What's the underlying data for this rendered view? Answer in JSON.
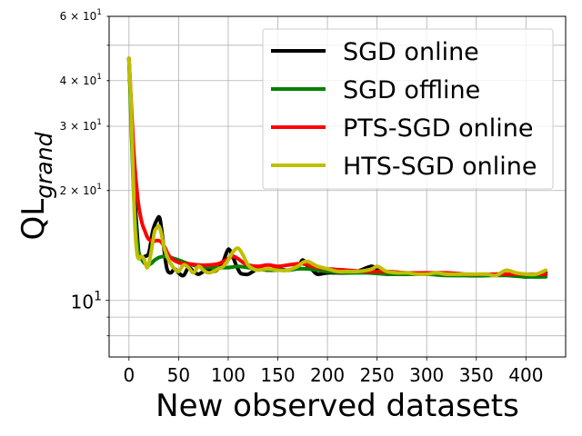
{
  "chart_data": {
    "type": "line",
    "xlabel": "New observed datasets",
    "ylabel_base": "QL",
    "ylabel_sub": "grand",
    "yscale": "log",
    "xlim": [
      -20,
      440
    ],
    "ylim": [
      7,
      60
    ],
    "grid": true,
    "legend_position": "top-right",
    "x_ticks": [
      0,
      50,
      100,
      150,
      200,
      250,
      300,
      350,
      400
    ],
    "x_tick_labels": [
      "0",
      "50",
      "100",
      "150",
      "200",
      "250",
      "300",
      "350",
      "400"
    ],
    "y_major_ticks": [
      {
        "value": 10,
        "base": "10",
        "exp": "1",
        "mult": ""
      },
      {
        "value": 20,
        "base": "10",
        "exp": "1",
        "mult": "2"
      },
      {
        "value": 30,
        "base": "10",
        "exp": "1",
        "mult": "3"
      },
      {
        "value": 40,
        "base": "10",
        "exp": "1",
        "mult": "4"
      },
      {
        "value": 60,
        "base": "10",
        "exp": "1",
        "mult": "6"
      }
    ],
    "y_grid_lines": [
      8,
      9,
      10,
      20,
      30,
      40,
      50,
      60
    ],
    "series": [
      {
        "name": "SGD online",
        "color": "#000000",
        "x": [
          0,
          2,
          4,
          6,
          8,
          10,
          13,
          16,
          20,
          24,
          28,
          31,
          34,
          38,
          42,
          46,
          50,
          55,
          60,
          65,
          70,
          75,
          80,
          85,
          90,
          95,
          100,
          104,
          108,
          112,
          116,
          120,
          125,
          130,
          140,
          150,
          160,
          170,
          175,
          180,
          185,
          190,
          200,
          210,
          220,
          230,
          240,
          245,
          250,
          255,
          260,
          270,
          280,
          290,
          300,
          320,
          340,
          360,
          370,
          380,
          390,
          400,
          410,
          415,
          420
        ],
        "values": [
          46,
          34,
          25,
          19,
          15.5,
          13.5,
          13,
          13.2,
          13.5,
          15.5,
          16.6,
          16.8,
          14.8,
          12.3,
          11.9,
          12.2,
          11.9,
          11.7,
          12.3,
          12.0,
          11.8,
          12.0,
          12.1,
          12.0,
          12.2,
          12.8,
          13.8,
          13.3,
          12.5,
          11.9,
          11.8,
          11.8,
          12.0,
          12.2,
          12.1,
          12.2,
          12.1,
          12.3,
          12.9,
          12.4,
          12.1,
          11.8,
          11.9,
          11.9,
          11.9,
          12.0,
          12.3,
          12.4,
          12.2,
          11.9,
          11.8,
          11.8,
          11.8,
          11.8,
          11.8,
          11.8,
          11.7,
          11.7,
          11.8,
          11.8,
          11.7,
          11.6,
          11.7,
          11.9,
          11.9
        ]
      },
      {
        "name": "SGD offline",
        "color": "#008000",
        "x": [
          0,
          2,
          4,
          6,
          8,
          10,
          14,
          18,
          22,
          26,
          30,
          36,
          42,
          50,
          60,
          70,
          80,
          90,
          100,
          110,
          120,
          130,
          140,
          150,
          160,
          170,
          180,
          190,
          200,
          220,
          240,
          260,
          280,
          300,
          320,
          340,
          360,
          380,
          400,
          420
        ],
        "values": [
          46,
          32,
          22,
          17,
          14.5,
          13.5,
          12.8,
          12.5,
          12.6,
          12.9,
          13.1,
          13.2,
          13.1,
          12.9,
          12.6,
          12.4,
          12.3,
          12.3,
          12.3,
          12.4,
          12.3,
          12.2,
          12.1,
          12.1,
          12.1,
          12.2,
          12.2,
          12.1,
          12.0,
          11.9,
          11.9,
          11.8,
          11.8,
          11.8,
          11.7,
          11.7,
          11.7,
          11.7,
          11.6,
          11.6
        ]
      },
      {
        "name": "PTS-SGD online",
        "color": "#ff0000",
        "x": [
          0,
          2,
          4,
          6,
          8,
          10,
          12,
          14,
          16,
          18,
          20,
          24,
          28,
          32,
          36,
          40,
          45,
          50,
          55,
          60,
          70,
          80,
          90,
          100,
          105,
          110,
          115,
          120,
          130,
          140,
          150,
          160,
          170,
          175,
          180,
          190,
          200,
          220,
          240,
          260,
          280,
          300,
          320,
          340,
          360,
          380,
          400,
          410,
          420
        ],
        "values": [
          46,
          36,
          28,
          23,
          20,
          18,
          16.8,
          16,
          15.5,
          15.0,
          14.7,
          14.5,
          14.6,
          14.5,
          14.0,
          13.3,
          12.9,
          12.7,
          12.6,
          12.6,
          12.5,
          12.5,
          12.6,
          13.0,
          13.2,
          13.0,
          12.7,
          12.5,
          12.4,
          12.5,
          12.4,
          12.5,
          12.6,
          12.6,
          12.5,
          12.3,
          12.2,
          12.1,
          12.0,
          12.0,
          11.9,
          11.9,
          11.9,
          11.8,
          11.8,
          11.8,
          11.8,
          11.8,
          11.8
        ]
      },
      {
        "name": "HTS-SGD online",
        "color": "#bfbf00",
        "x": [
          0,
          2,
          4,
          6,
          8,
          10,
          12,
          15,
          18,
          20,
          22,
          24,
          26,
          28,
          30,
          32,
          34,
          36,
          40,
          45,
          50,
          55,
          60,
          65,
          70,
          75,
          80,
          85,
          90,
          95,
          100,
          105,
          110,
          115,
          120,
          125,
          130,
          140,
          150,
          160,
          170,
          175,
          180,
          185,
          190,
          200,
          210,
          220,
          230,
          240,
          245,
          250,
          255,
          260,
          270,
          280,
          290,
          300,
          310,
          320,
          340,
          360,
          370,
          380,
          390,
          400,
          410,
          420
        ],
        "values": [
          46,
          35,
          23,
          16,
          13.5,
          13.0,
          13.2,
          13.0,
          12.3,
          12.6,
          13.4,
          14.5,
          15.5,
          15.8,
          16.0,
          15.5,
          14.6,
          13.8,
          12.9,
          12.3,
          12.0,
          12.5,
          12.3,
          11.9,
          12.4,
          12.1,
          11.9,
          12.0,
          12.2,
          12.4,
          12.9,
          13.6,
          13.9,
          13.3,
          12.5,
          12.2,
          12.1,
          12.2,
          12.1,
          12.1,
          12.4,
          12.7,
          12.8,
          12.6,
          12.4,
          12.2,
          12.0,
          12.0,
          12.0,
          12.1,
          12.2,
          12.4,
          12.2,
          12.0,
          11.9,
          11.9,
          11.8,
          11.8,
          11.9,
          11.8,
          11.8,
          11.8,
          11.7,
          12.1,
          11.9,
          11.8,
          11.8,
          12.1
        ]
      }
    ]
  }
}
